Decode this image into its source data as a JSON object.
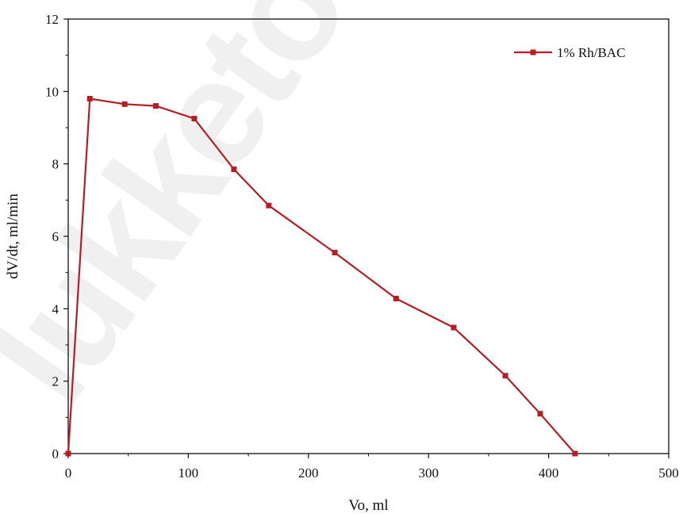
{
  "watermark": "lukketov",
  "chart_data": {
    "type": "line",
    "title": "",
    "xlabel": "Vo, ml",
    "ylabel": "dV/dt, ml/min",
    "xlim": [
      0,
      500
    ],
    "ylim": [
      0,
      12
    ],
    "x_ticks": [
      "0",
      "100",
      "200",
      "300",
      "400",
      "500"
    ],
    "y_ticks": [
      "0",
      "2",
      "4",
      "6",
      "8",
      "10",
      "12"
    ],
    "grid": false,
    "legend_position": "top-right",
    "colors": {
      "series": "#b41e24",
      "axis": "#111111"
    },
    "series": [
      {
        "name": "1% Rh/BAC",
        "marker": "square",
        "x": [
          0,
          18,
          47,
          73,
          105,
          138,
          167,
          222,
          273,
          321,
          364,
          393,
          422
        ],
        "y": [
          0,
          9.8,
          9.65,
          9.6,
          9.25,
          7.85,
          6.85,
          5.55,
          4.28,
          3.48,
          2.15,
          1.1,
          0.0
        ]
      }
    ]
  }
}
